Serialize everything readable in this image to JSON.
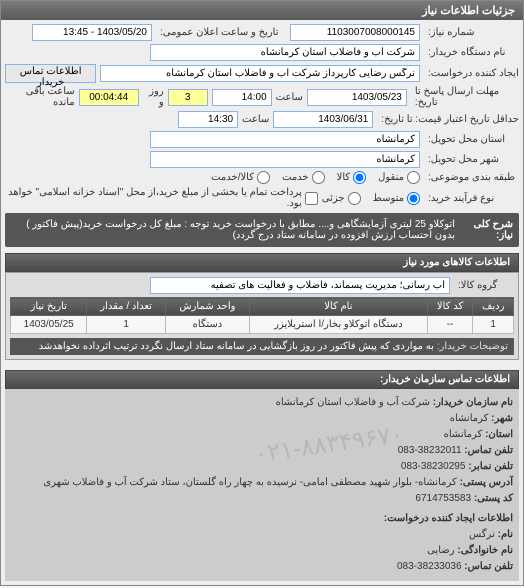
{
  "header": {
    "title": "جزئیات اطلاعات نیاز"
  },
  "fields": {
    "need_number_label": "شماره نیاز:",
    "need_number": "1103007008000145",
    "announce_label": "تاریخ و ساعت اعلان عمومی:",
    "announce_date": "1403/05/20 - 13:45",
    "org_name_label": "نام دستگاه خریدار:",
    "org_name": "شرکت آب و فاضلاب استان کرمانشاه",
    "requester_label": "ایجاد کننده درخواست:",
    "requester": "نرگس رضایی کارپرداز شرکت آب و فاضلاب استان کرمانشاه",
    "contact_btn": "اطلاعات تماس خریدار",
    "deadline_label": "مهلت ارسال پاسخ تا تاریخ:",
    "deadline_date": "1403/05/23",
    "deadline_time_label": "ساعت",
    "deadline_time": "14:00",
    "days_label": "روز و",
    "days": "3",
    "remain": "00:04:44",
    "remain_label": "ساعت باقی مانده",
    "price_deadline_label": "حداقل تاریخ اعتبار قیمت: تا تاریخ:",
    "price_deadline_date": "1403/06/31",
    "price_deadline_time": "14:30",
    "province_label": "استان محل تحویل:",
    "province": "کرمانشاه",
    "city_label": "شهر محل تحویل:",
    "city": "کرمانشاه",
    "budget_type_label": "طبقه بندی موضوعی:",
    "budget_opts": [
      "منقول",
      "کالا",
      "خدمت",
      "کالا/خدمت"
    ],
    "process_type_label": "نوع فرآیند خرید:",
    "process_opts": [
      "متوسط",
      "جزئی"
    ],
    "process_note": "پرداخت تمام یا بخشی از مبلغ خرید،از محل \"اسناد خزانه اسلامی\" خواهد بود.",
    "desc_label": "شرح کلی نیاز:",
    "desc_text": "اتوکلاو 25 لیتری آزمایشگاهی و.... مطابق با درخواست خرید توجه : مبلغ کل درخواست خرید(پیش فاکتور ) بدون احتساب ارزش افزوده در سامانه ستاد درج گردد)"
  },
  "goods_section": {
    "title": "اطلاعات کالاهای مورد نیاز",
    "group_label": "گروه کالا:",
    "group_value": "آب رسانی؛ مدیریت پسماند، فاضلاب و فعالیت های تصفیه",
    "table": {
      "columns": [
        "ردیف",
        "کد کالا",
        "نام کالا",
        "واحد شمارش",
        "تعداد / مقدار",
        "تاریخ نیاز"
      ],
      "rows": [
        [
          "1",
          "--",
          "دستگاه اتوکلاو بخار/ا استریلایزر",
          "دستگاه",
          "1",
          "1403/05/25"
        ]
      ]
    },
    "buyer_note_label": "توضیحات خریدار:",
    "buyer_note": "به مواردی که پیش فاکتور در روز بازگشایی در سامانه ستاد ارسال نگردد ترتیب اثرداده نخواهدشد"
  },
  "contact_section": {
    "title": "اطلاعات تماس سازمان خریدار:",
    "org_label": "نام سازمان خریدار:",
    "org": "شرکت آب و فاضلاب استان کرمانشاه",
    "city_label": "شهر:",
    "city": "کرمانشاه",
    "prov_label": "استان:",
    "prov": "کرمانشاه",
    "phone_label": "تلفن تماس:",
    "phone": "38232011-083",
    "fax_label": "تلفن نمابر:",
    "fax": "38230295-083",
    "addr_label": "آدرس پستی:",
    "addr": "کرمانشاه- بلوار شهید مصطفی امامی- نرسیده به چهار راه گلستان، ستاد شرکت آب و فاضلاب شهری",
    "zip_label": "کد پستی:",
    "zip": "6714753583",
    "creator_title": "اطلاعات ایجاد کننده درخواست:",
    "name_label": "نام:",
    "name": "نرگس",
    "family_label": "نام خانوادگی:",
    "family": "رضایی",
    "cphone_label": "تلفن تماس:",
    "cphone": "38233036-083"
  },
  "watermark": "۰۲۱-۸۸۳۴۹۶۷۰",
  "colors": {
    "header_bg": "#6a6a6a",
    "input_border": "#8db2e3",
    "highlight": "#ffff99"
  }
}
